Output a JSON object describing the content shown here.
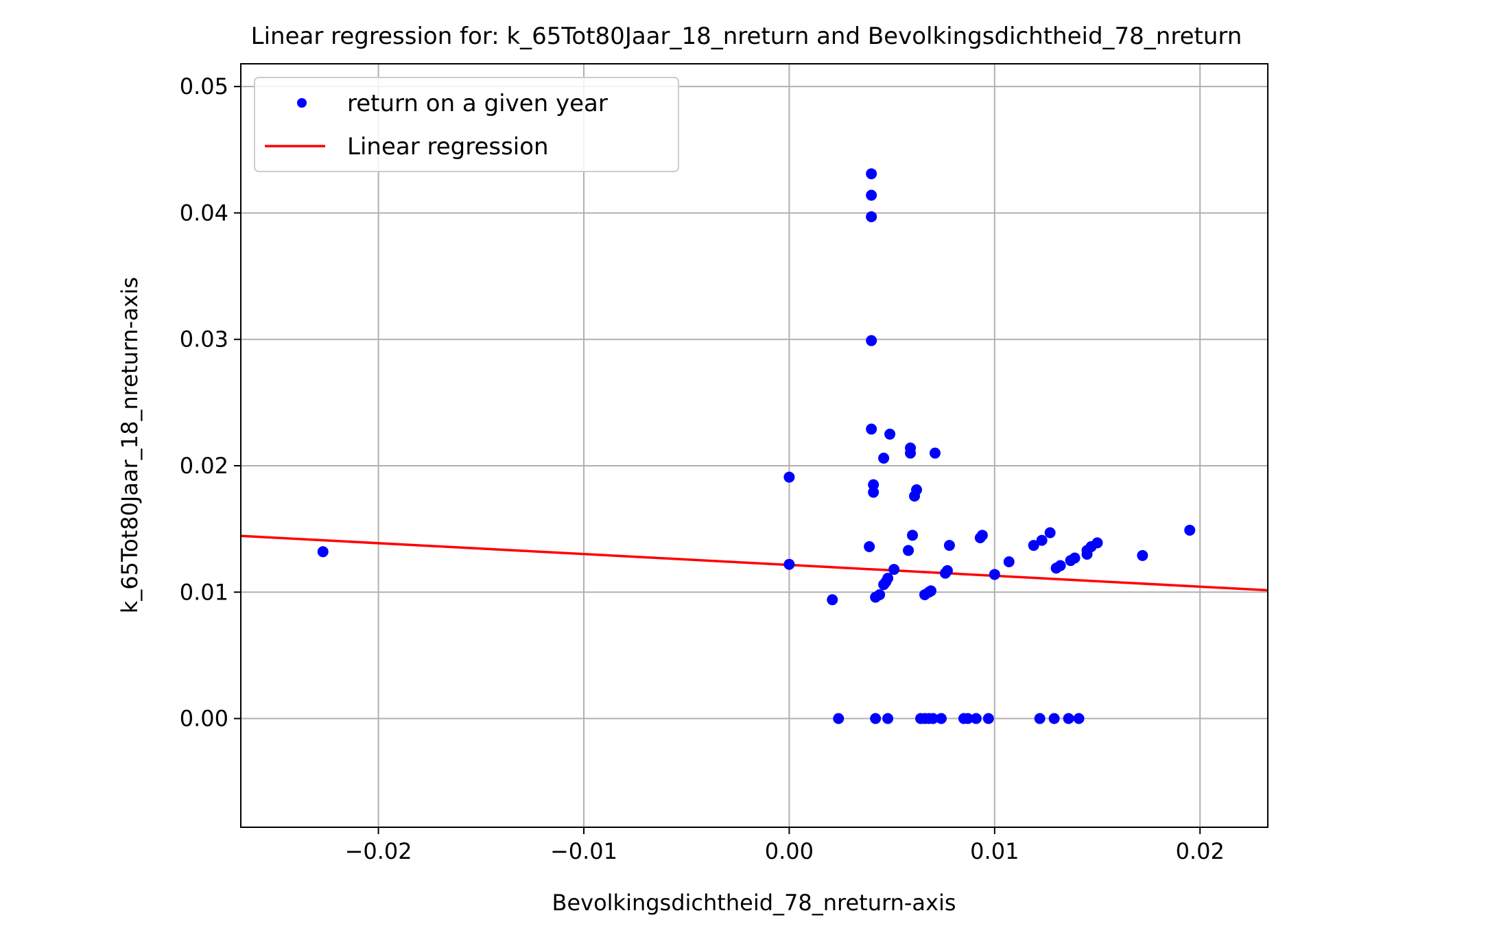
{
  "chart_data": {
    "type": "scatter",
    "title": "Linear regression for: k_65Tot80Jaar_18_nreturn and Bevolkingsdichtheid_78_nreturn",
    "xlabel": "Bevolkingsdichtheid_78_nreturn-axis",
    "ylabel": "k_65Tot80Jaar_18_nreturn-axis",
    "xlim": [
      -0.0267,
      0.0233
    ],
    "ylim": [
      -0.0086,
      0.0518
    ],
    "grid": true,
    "legend_position": "top-left",
    "x_ticks": [
      {
        "value": -0.02,
        "label": "−0.02"
      },
      {
        "value": -0.01,
        "label": "−0.01"
      },
      {
        "value": 0.0,
        "label": "0.00"
      },
      {
        "value": 0.01,
        "label": "0.01"
      },
      {
        "value": 0.02,
        "label": "0.02"
      }
    ],
    "y_ticks": [
      {
        "value": 0.0,
        "label": "0.00"
      },
      {
        "value": 0.01,
        "label": "0.01"
      },
      {
        "value": 0.02,
        "label": "0.02"
      },
      {
        "value": 0.03,
        "label": "0.03"
      },
      {
        "value": 0.04,
        "label": "0.04"
      },
      {
        "value": 0.05,
        "label": "0.05"
      }
    ],
    "series": [
      {
        "name": "return on a given year",
        "kind": "scatter",
        "color": "#0000ff",
        "points": [
          [
            -0.0227,
            0.0132
          ],
          [
            0.0,
            0.0191
          ],
          [
            0.0,
            0.0122
          ],
          [
            0.0021,
            0.0094
          ],
          [
            0.004,
            0.0431
          ],
          [
            0.004,
            0.0414
          ],
          [
            0.004,
            0.0397
          ],
          [
            0.004,
            0.0299
          ],
          [
            0.004,
            0.0229
          ],
          [
            0.0041,
            0.0185
          ],
          [
            0.0041,
            0.0179
          ],
          [
            0.0039,
            0.0136
          ],
          [
            0.0042,
            0.0096
          ],
          [
            0.0044,
            0.0098
          ],
          [
            0.0046,
            0.0106
          ],
          [
            0.0047,
            0.0108
          ],
          [
            0.0048,
            0.0111
          ],
          [
            0.0049,
            0.0225
          ],
          [
            0.0046,
            0.0206
          ],
          [
            0.0051,
            0.0118
          ],
          [
            0.0058,
            0.0133
          ],
          [
            0.0059,
            0.0214
          ],
          [
            0.0059,
            0.021
          ],
          [
            0.006,
            0.0145
          ],
          [
            0.0061,
            0.0176
          ],
          [
            0.0062,
            0.0181
          ],
          [
            0.0066,
            0.0098
          ],
          [
            0.0068,
            0.01
          ],
          [
            0.0069,
            0.0101
          ],
          [
            0.0071,
            0.021
          ],
          [
            0.0076,
            0.0115
          ],
          [
            0.0077,
            0.0117
          ],
          [
            0.0078,
            0.0137
          ],
          [
            0.0093,
            0.0143
          ],
          [
            0.0094,
            0.0145
          ],
          [
            0.01,
            0.0114
          ],
          [
            0.0107,
            0.0124
          ],
          [
            0.0119,
            0.0137
          ],
          [
            0.0123,
            0.0141
          ],
          [
            0.0127,
            0.0147
          ],
          [
            0.013,
            0.0119
          ],
          [
            0.0132,
            0.0121
          ],
          [
            0.0137,
            0.0125
          ],
          [
            0.0139,
            0.0127
          ],
          [
            0.0145,
            0.013
          ],
          [
            0.0145,
            0.0133
          ],
          [
            0.0147,
            0.0136
          ],
          [
            0.015,
            0.0139
          ],
          [
            0.0172,
            0.0129
          ],
          [
            0.0195,
            0.0149
          ],
          [
            0.0024,
            0.0
          ],
          [
            0.0042,
            0.0
          ],
          [
            0.0048,
            0.0
          ],
          [
            0.0064,
            0.0
          ],
          [
            0.0066,
            0.0
          ],
          [
            0.0068,
            0.0
          ],
          [
            0.007,
            0.0
          ],
          [
            0.0074,
            0.0
          ],
          [
            0.0085,
            0.0
          ],
          [
            0.0087,
            0.0
          ],
          [
            0.0091,
            0.0
          ],
          [
            0.0097,
            0.0
          ],
          [
            0.0122,
            0.0
          ],
          [
            0.0129,
            0.0
          ],
          [
            0.0136,
            0.0
          ],
          [
            0.0141,
            0.0
          ]
        ]
      },
      {
        "name": "Linear regression",
        "kind": "line",
        "color": "#ff0000",
        "x": [
          -0.0267,
          0.0233
        ],
        "y": [
          0.01445,
          0.01015
        ]
      }
    ]
  }
}
